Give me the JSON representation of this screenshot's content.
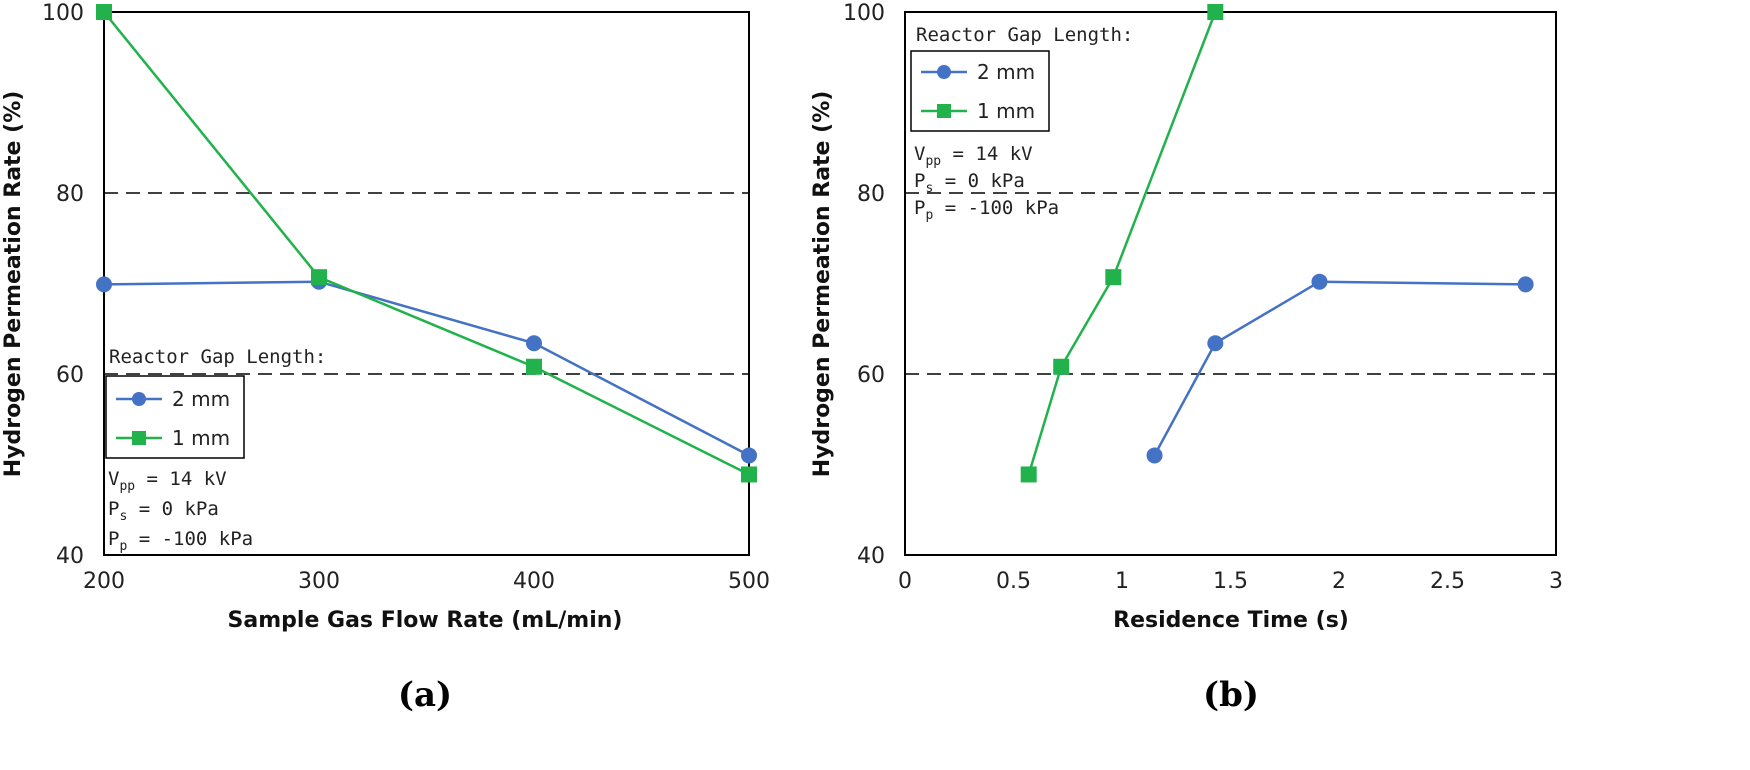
{
  "chart_data": [
    {
      "type": "line",
      "panel": "(a)",
      "xlabel": "Sample Gas Flow Rate (mL/min)",
      "ylabel": "Hydrogen Permeation Rate (%)",
      "xlim": [
        200,
        500
      ],
      "ylim": [
        40,
        100
      ],
      "xticks": [
        200,
        300,
        400,
        500
      ],
      "yticks": [
        40,
        60,
        80,
        100
      ],
      "reference_lines_y": [
        60,
        80
      ],
      "legend_title": "Reactor Gap Length:",
      "series": [
        {
          "name": "2 mm",
          "color": "#4472C4",
          "marker": "circle",
          "x": [
            200,
            300,
            400,
            500
          ],
          "y": [
            69.9,
            70.2,
            63.4,
            51.0
          ]
        },
        {
          "name": "1 mm",
          "color": "#21B24B",
          "marker": "square",
          "x": [
            200,
            300,
            400,
            500
          ],
          "y": [
            100.0,
            70.7,
            60.8,
            48.9
          ]
        }
      ],
      "conditions": [
        {
          "sym": "V",
          "sub": "pp",
          "rest": " = 14 kV"
        },
        {
          "sym": "P",
          "sub": "s",
          "rest": " = 0 kPa"
        },
        {
          "sym": "P",
          "sub": "p",
          "rest": " = -100 kPa"
        }
      ]
    },
    {
      "type": "line",
      "panel": "(b)",
      "xlabel": "Residence Time (s)",
      "ylabel": "Hydrogen Permeation Rate (%)",
      "xlim": [
        0,
        3
      ],
      "ylim": [
        40,
        100
      ],
      "xticks": [
        0,
        0.5,
        1,
        1.5,
        2,
        2.5,
        3
      ],
      "yticks": [
        40,
        60,
        80,
        100
      ],
      "reference_lines_y": [
        60,
        80
      ],
      "legend_title": "Reactor Gap Length:",
      "series": [
        {
          "name": "2 mm",
          "color": "#4472C4",
          "marker": "circle",
          "x": [
            1.15,
            1.43,
            1.91,
            2.86
          ],
          "y": [
            51.0,
            63.4,
            70.2,
            69.9
          ]
        },
        {
          "name": "1 mm",
          "color": "#21B24B",
          "marker": "square",
          "x": [
            0.57,
            0.72,
            0.96,
            1.43
          ],
          "y": [
            48.9,
            60.8,
            70.7,
            100.0
          ]
        }
      ],
      "conditions": [
        {
          "sym": "V",
          "sub": "pp",
          "rest": " = 14 kV"
        },
        {
          "sym": "P",
          "sub": "s",
          "rest": " = 0 kPa"
        },
        {
          "sym": "P",
          "sub": "p",
          "rest": " = -100 kPa"
        }
      ]
    }
  ]
}
